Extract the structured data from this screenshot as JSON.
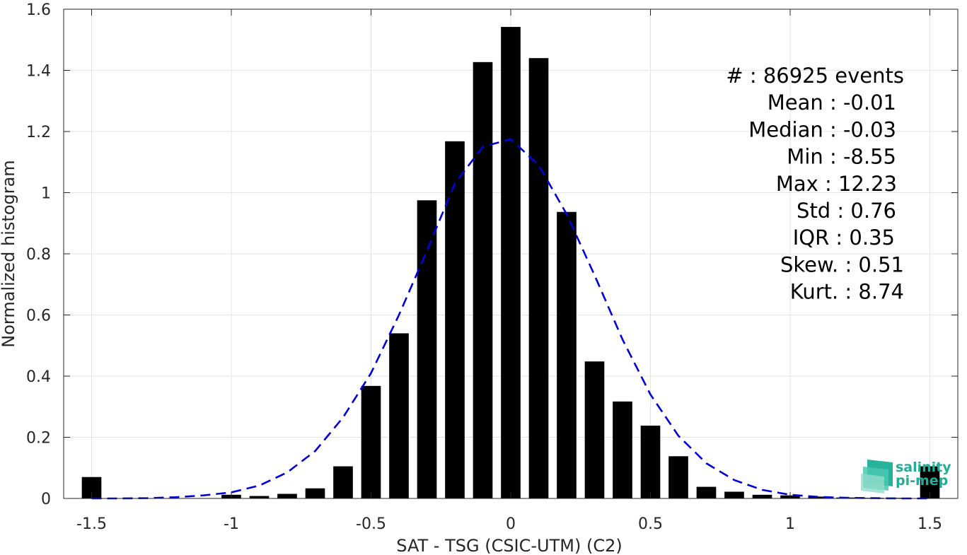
{
  "chart_data": {
    "type": "bar",
    "xlabel": "SAT - TSG (CSIC-UTM) (C2)",
    "ylabel": "Normalized histogram",
    "xlim": [
      -1.6,
      1.6
    ],
    "ylim": [
      0,
      1.6
    ],
    "xticks": [
      -1.5,
      -1,
      -0.5,
      0,
      0.5,
      1,
      1.5
    ],
    "xtick_labels": [
      "-1.5",
      "-1",
      "-0.5",
      "0",
      "0.5",
      "1",
      "1.5"
    ],
    "yticks": [
      0,
      0.2,
      0.4,
      0.6,
      0.8,
      1,
      1.2,
      1.4,
      1.6
    ],
    "ytick_labels": [
      "0",
      "0.2",
      "0.4",
      "0.6",
      "0.8",
      "1",
      "1.2",
      "1.4",
      "1.6"
    ],
    "grid": true,
    "bar_color": "#000000",
    "curve_color": "#0000dd",
    "bar_width": 0.07,
    "bars": {
      "x": [
        -1.5,
        -1.4,
        -1.3,
        -1.2,
        -1.1,
        -1.0,
        -0.9,
        -0.8,
        -0.7,
        -0.6,
        -0.5,
        -0.4,
        -0.3,
        -0.2,
        -0.1,
        0.0,
        0.1,
        0.2,
        0.3,
        0.4,
        0.5,
        0.6,
        0.7,
        0.8,
        0.9,
        1.0,
        1.1,
        1.2,
        1.3,
        1.4,
        1.5
      ],
      "values": [
        0.07,
        0.0,
        0.0,
        0.0,
        0.0,
        0.012,
        0.008,
        0.015,
        0.033,
        0.105,
        0.368,
        0.54,
        0.975,
        1.168,
        1.427,
        1.542,
        1.44,
        0.937,
        0.448,
        0.317,
        0.238,
        0.138,
        0.038,
        0.022,
        0.012,
        0.01,
        0.006,
        0.003,
        0.002,
        0.002,
        0.105
      ]
    },
    "curve": {
      "style": "dashed",
      "x": [
        -1.5,
        -1.4,
        -1.3,
        -1.2,
        -1.1,
        -1.0,
        -0.9,
        -0.8,
        -0.7,
        -0.6,
        -0.5,
        -0.4,
        -0.3,
        -0.2,
        -0.1,
        0.0,
        0.1,
        0.2,
        0.3,
        0.4,
        0.5,
        0.6,
        0.7,
        0.8,
        0.9,
        1.0,
        1.1,
        1.2,
        1.3,
        1.4,
        1.5
      ],
      "values": [
        0.0,
        0.0,
        0.001,
        0.004,
        0.01,
        0.02,
        0.042,
        0.085,
        0.155,
        0.265,
        0.41,
        0.6,
        0.81,
        1.03,
        1.15,
        1.175,
        1.09,
        0.93,
        0.73,
        0.52,
        0.34,
        0.205,
        0.115,
        0.06,
        0.028,
        0.012,
        0.005,
        0.002,
        0.001,
        0.0,
        0.0
      ]
    },
    "annotations": [
      "#  : 86925 events",
      "Mean : -0.01",
      "Median : -0.03",
      "Min : -8.55",
      "Max : 12.23",
      "Std : 0.76",
      "IQR : 0.35",
      "Skew. : 0.51",
      "Kurt. : 8.74"
    ]
  },
  "logo": {
    "line1": "salinity",
    "line2": "pi-mep",
    "color": "#1fae96"
  }
}
